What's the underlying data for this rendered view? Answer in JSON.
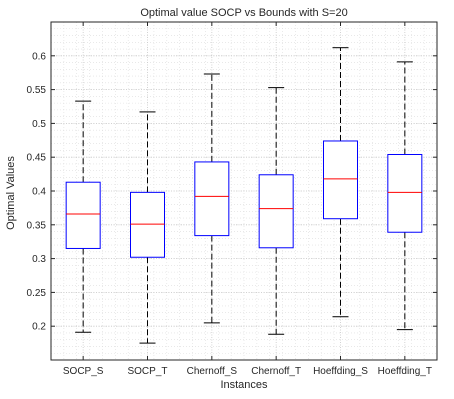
{
  "chart_data": {
    "type": "boxplot",
    "title": "Optimal value SOCP vs Bounds with S=20",
    "xlabel": "Instances",
    "ylabel": "Optimal Values",
    "ylim": [
      0.15,
      0.65
    ],
    "yticks": [
      0.2,
      0.25,
      0.3,
      0.35,
      0.4,
      0.45,
      0.5,
      0.55,
      0.6
    ],
    "ytick_labels": [
      "0.2",
      "0.25",
      "0.3",
      "0.35",
      "0.4",
      "0.45",
      "0.5",
      "0.55",
      "0.6"
    ],
    "grid": "on (major and minor, dotted)",
    "categories": [
      "SOCP_S",
      "SOCP_T",
      "Chernoff_S",
      "Chernoff_T",
      "Hoeffding_S",
      "Hoeffding_T"
    ],
    "boxes": [
      {
        "label": "SOCP_S",
        "whisker_low": 0.191,
        "q1": 0.315,
        "median": 0.366,
        "q3": 0.413,
        "whisker_high": 0.533
      },
      {
        "label": "SOCP_T",
        "whisker_low": 0.175,
        "q1": 0.302,
        "median": 0.351,
        "q3": 0.398,
        "whisker_high": 0.517
      },
      {
        "label": "Chernoff_S",
        "whisker_low": 0.205,
        "q1": 0.334,
        "median": 0.392,
        "q3": 0.443,
        "whisker_high": 0.573
      },
      {
        "label": "Chernoff_T",
        "whisker_low": 0.188,
        "q1": 0.316,
        "median": 0.374,
        "q3": 0.424,
        "whisker_high": 0.553
      },
      {
        "label": "Hoeffding_S",
        "whisker_low": 0.214,
        "q1": 0.359,
        "median": 0.418,
        "q3": 0.474,
        "whisker_high": 0.612
      },
      {
        "label": "Hoeffding_T",
        "whisker_low": 0.195,
        "q1": 0.339,
        "median": 0.398,
        "q3": 0.454,
        "whisker_high": 0.591
      }
    ],
    "colors": {
      "box": "#0000ff",
      "median": "#ff0000",
      "whisker": "#000000",
      "axis": "#262626",
      "grid": "#dcdcdc"
    }
  }
}
